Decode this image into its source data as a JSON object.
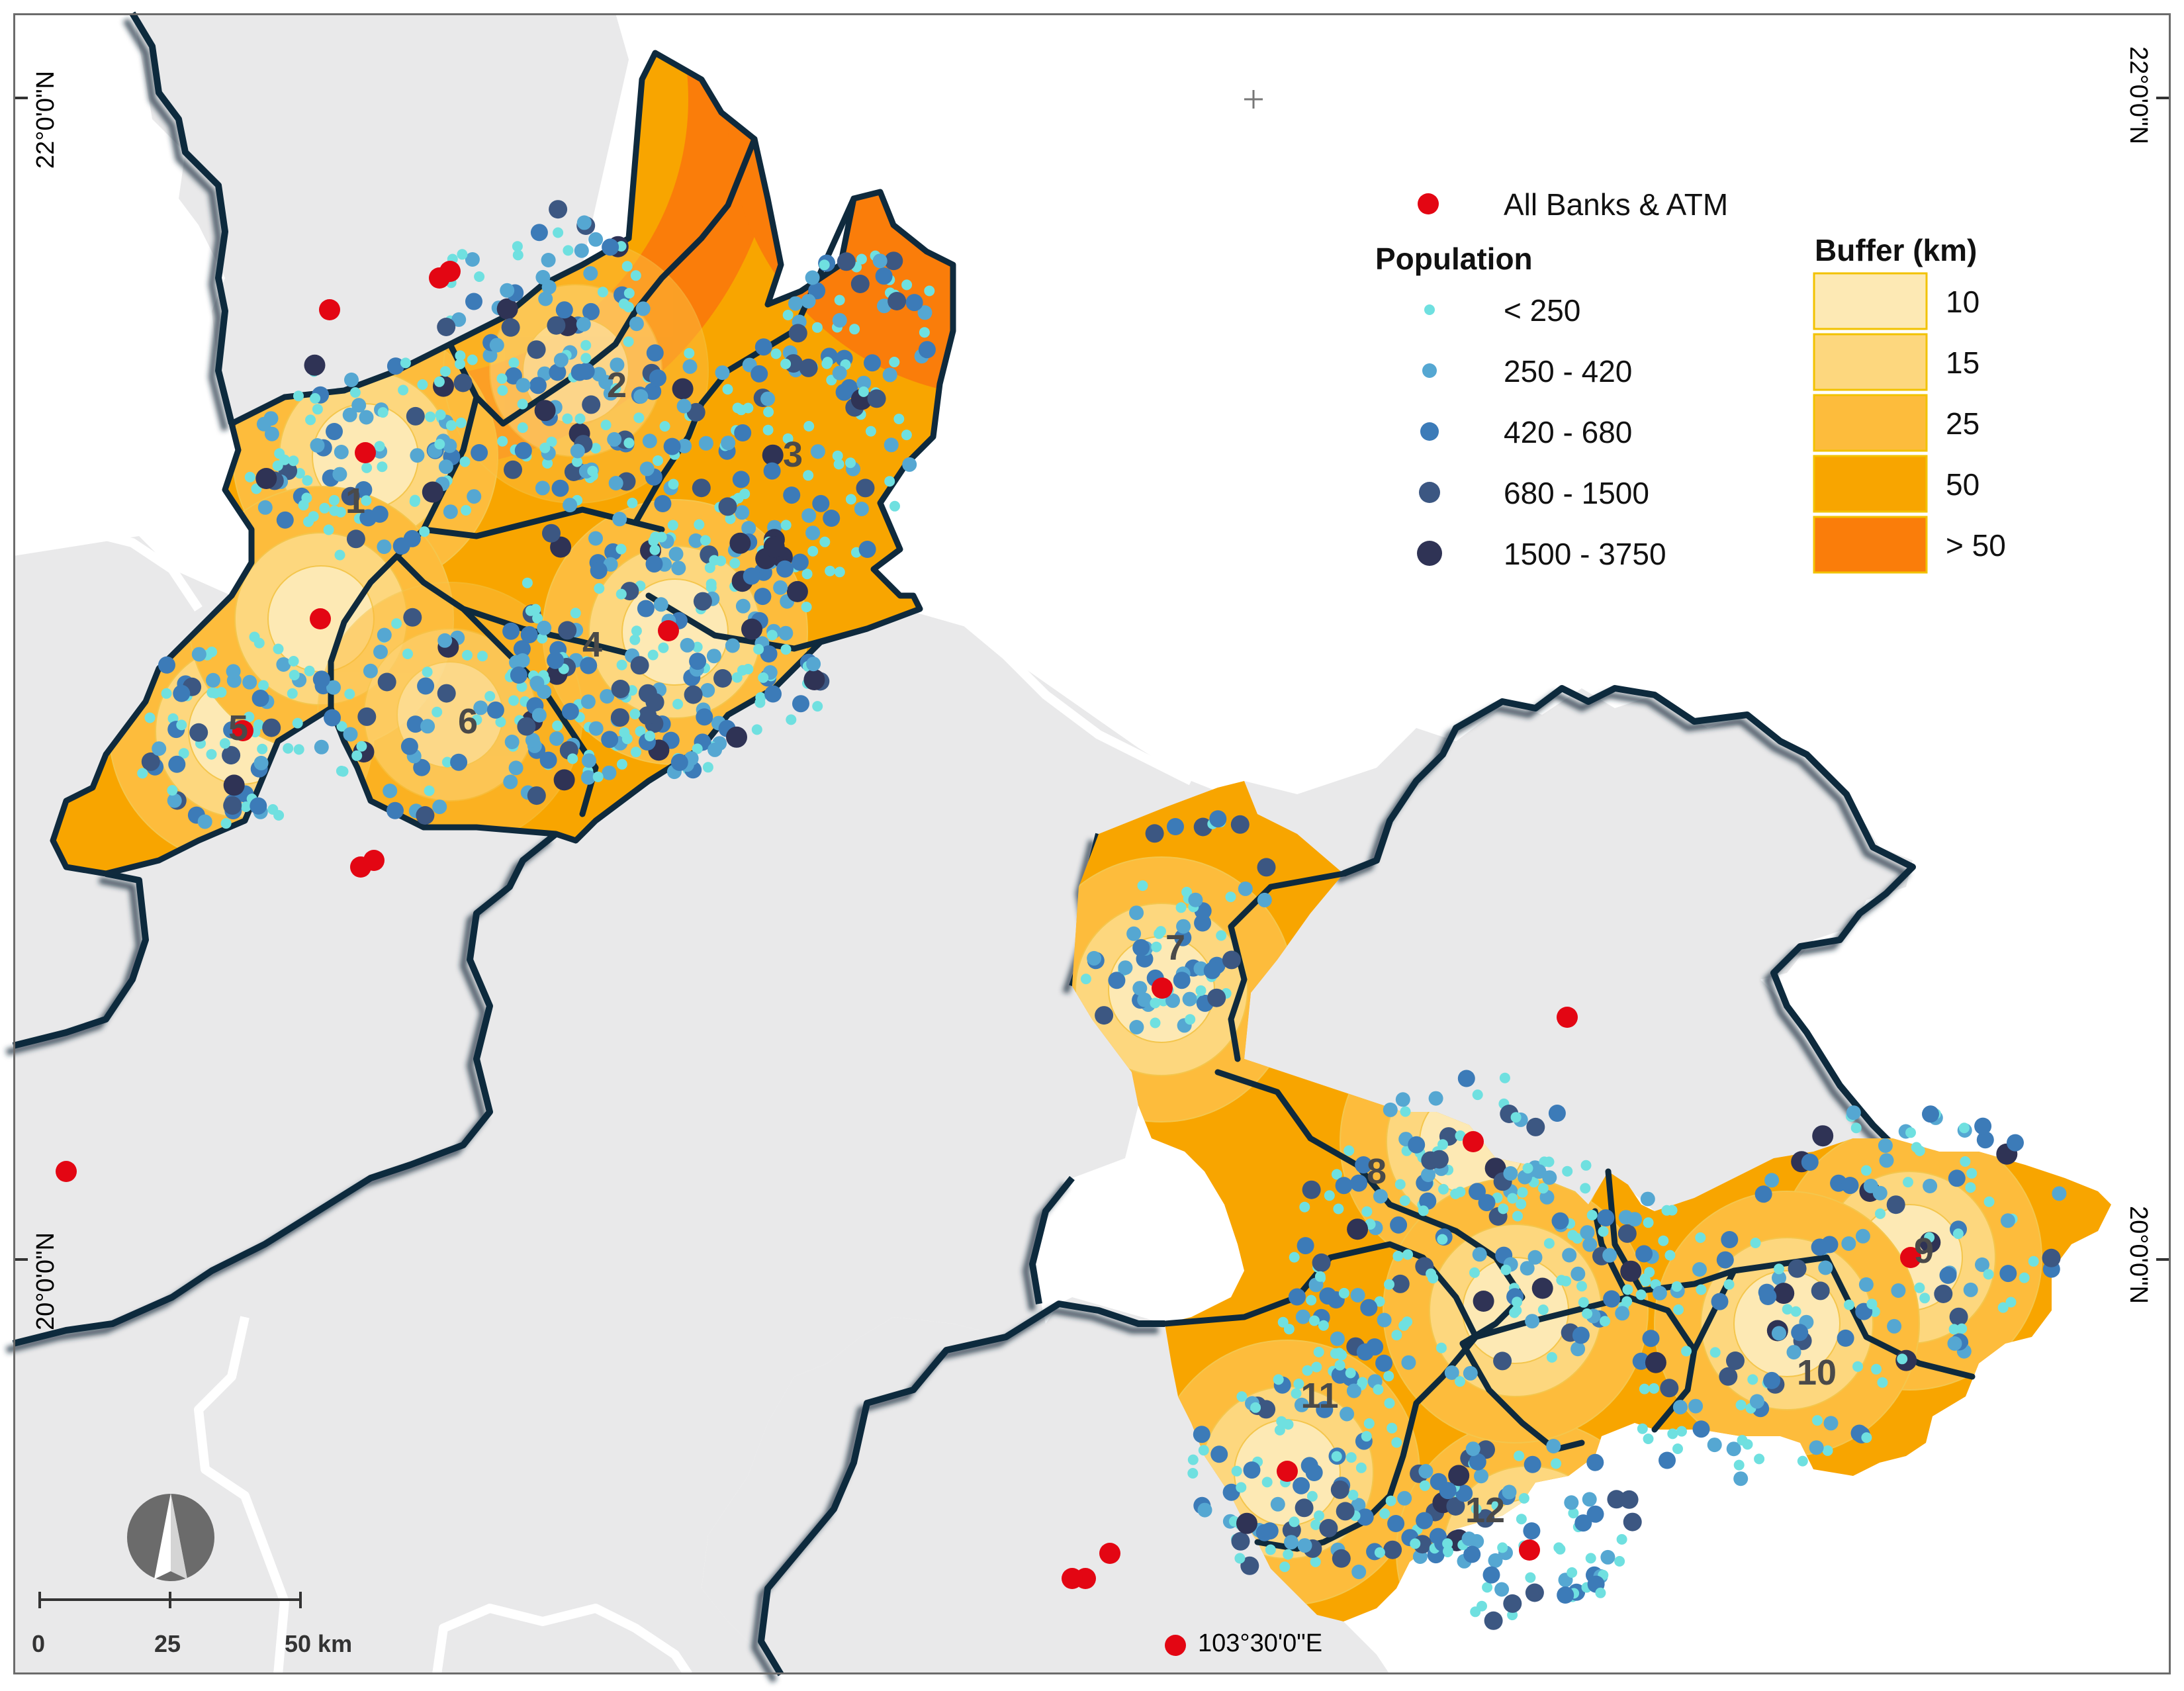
{
  "colors": {
    "background_land": "#e9e9ea",
    "border_dark": "#0f2a3d",
    "buffer_10": "#fde9b4",
    "buffer_15": "#fdd77e",
    "buffer_25": "#fdbc3c",
    "buffer_50": "#f8a500",
    "buffer_over_50": "#fa7d0a",
    "bank_marker": "#e30613",
    "pop_lt_250": "#6fe0e0",
    "pop_250_420": "#55a7d2",
    "pop_420_680": "#3c7bb8",
    "pop_680_1500": "#3c5782",
    "pop_1500_3750": "#2f3355"
  },
  "legend": {
    "banks_label": "All Banks & ATM",
    "population_title": "Population",
    "population_classes": [
      "< 250",
      "250 - 420",
      "420 - 680",
      "680 - 1500",
      "1500 - 3750"
    ],
    "buffer_title": "Buffer (km)",
    "buffer_classes": [
      "10",
      "15",
      "25",
      "50",
      "> 50"
    ]
  },
  "coordinates": {
    "lat_top": "22°0'0\"N",
    "lat_bottom": "20°0'0\"N",
    "lon_bottom": "103°30'0\"E"
  },
  "regions": [
    "1",
    "2",
    "3",
    "4",
    "5",
    "6",
    "7",
    "8",
    "9",
    "10",
    "11",
    "12"
  ],
  "scale_bar": {
    "labels": [
      "0",
      "25",
      "50 km"
    ]
  },
  "north_arrow": {
    "icon": "north-arrow-icon"
  }
}
